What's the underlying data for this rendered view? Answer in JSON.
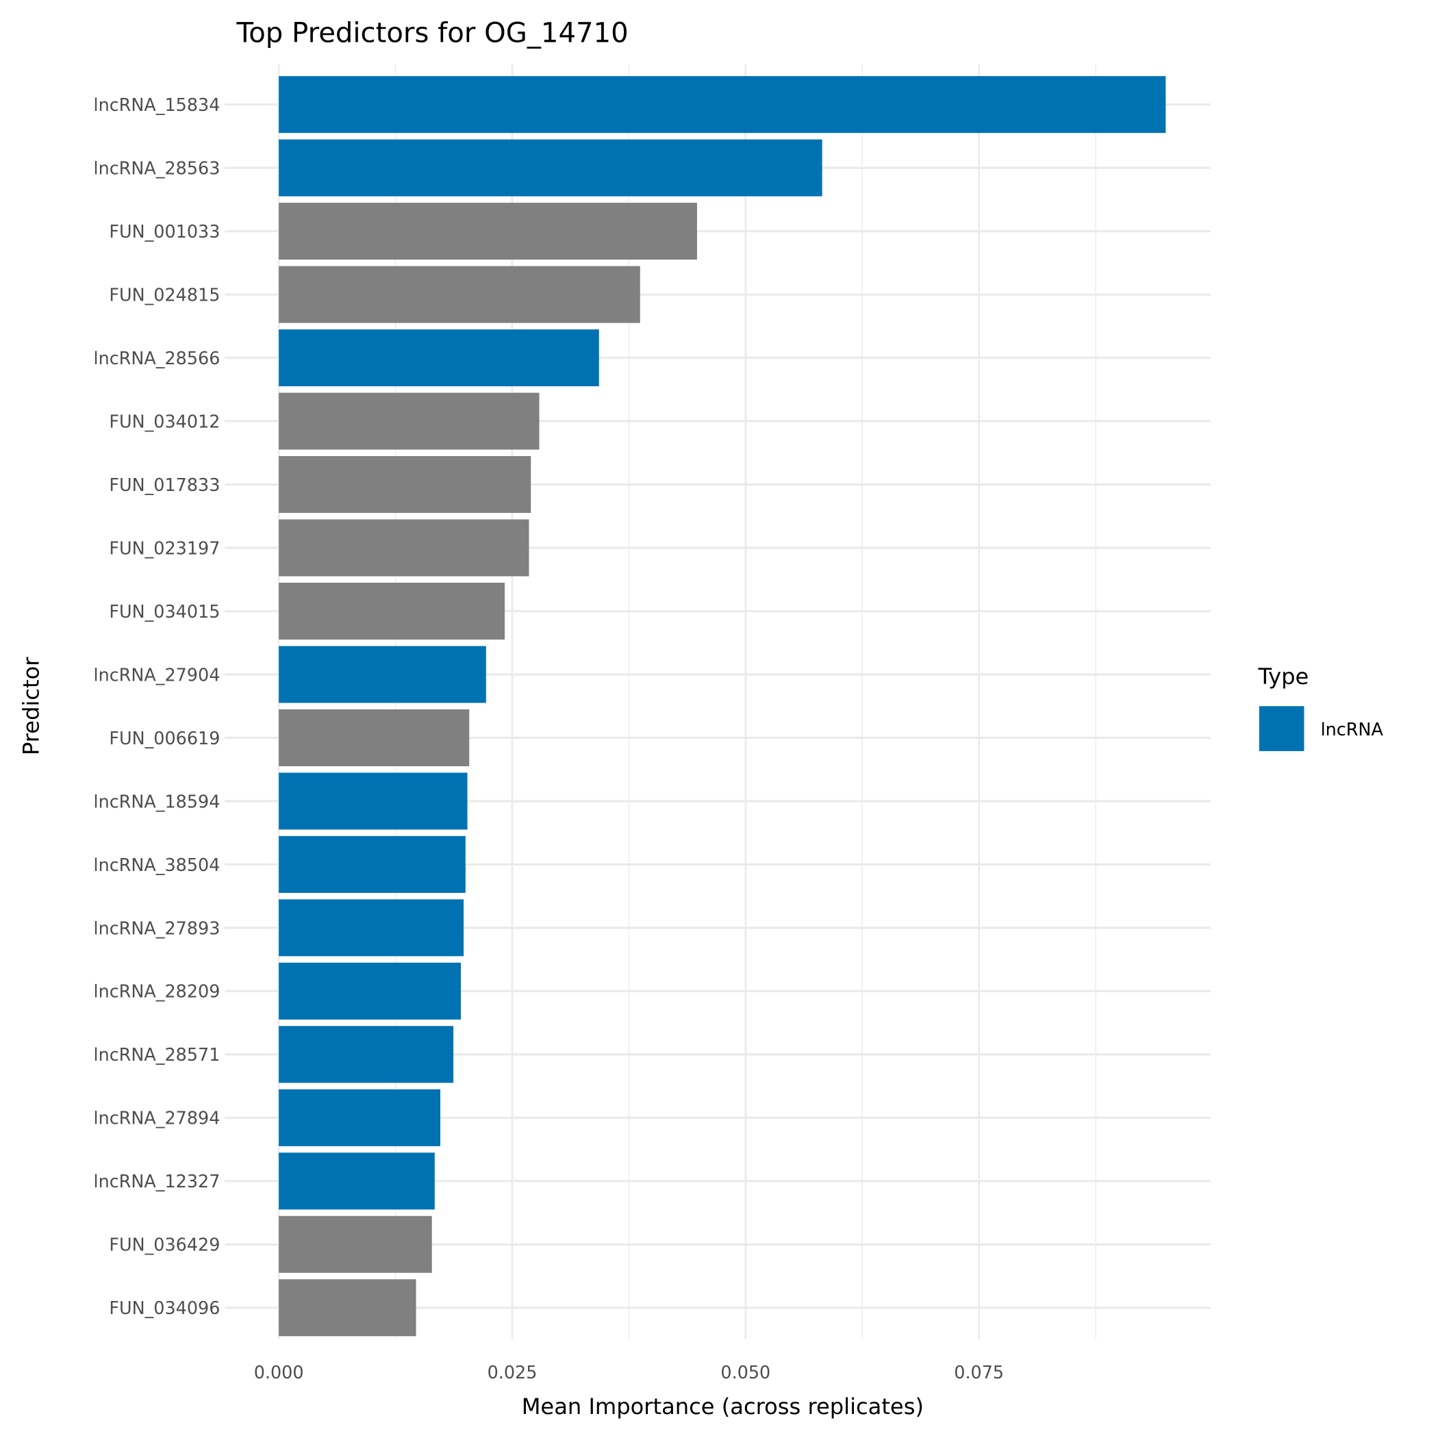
{
  "chart_data": {
    "type": "bar",
    "orientation": "horizontal",
    "title": "Top Predictors for OG_14710",
    "xlabel": "Mean Importance (across replicates)",
    "ylabel": "Predictor",
    "xlim": [
      0,
      0.1
    ],
    "xticks": [
      "0.000",
      "0.025",
      "0.050",
      "0.075"
    ],
    "xtick_values": [
      0,
      0.025,
      0.05,
      0.075
    ],
    "grid": true,
    "legend": {
      "title": "Type",
      "placement": "right",
      "entries": [
        {
          "label": "lncRNA",
          "color": "#0072B2"
        }
      ]
    },
    "colors": {
      "lncRNA": "#0072B2",
      "other": "#808080"
    },
    "categories": [
      "lncRNA_15834",
      "lncRNA_28563",
      "FUN_001033",
      "FUN_024815",
      "lncRNA_28566",
      "FUN_034012",
      "FUN_017833",
      "FUN_023197",
      "FUN_034015",
      "lncRNA_27904",
      "FUN_006619",
      "lncRNA_18594",
      "lncRNA_38504",
      "lncRNA_27893",
      "lncRNA_28209",
      "lncRNA_28571",
      "lncRNA_27894",
      "lncRNA_12327",
      "FUN_036429",
      "FUN_034096"
    ],
    "values": [
      0.095,
      0.0582,
      0.0448,
      0.0387,
      0.0343,
      0.0279,
      0.027,
      0.0268,
      0.0242,
      0.0222,
      0.0204,
      0.0202,
      0.02,
      0.0198,
      0.0195,
      0.0187,
      0.0173,
      0.0167,
      0.0164,
      0.0147
    ],
    "types": [
      "lncRNA",
      "lncRNA",
      "other",
      "other",
      "lncRNA",
      "other",
      "other",
      "other",
      "other",
      "lncRNA",
      "other",
      "lncRNA",
      "lncRNA",
      "lncRNA",
      "lncRNA",
      "lncRNA",
      "lncRNA",
      "lncRNA",
      "other",
      "other"
    ]
  }
}
